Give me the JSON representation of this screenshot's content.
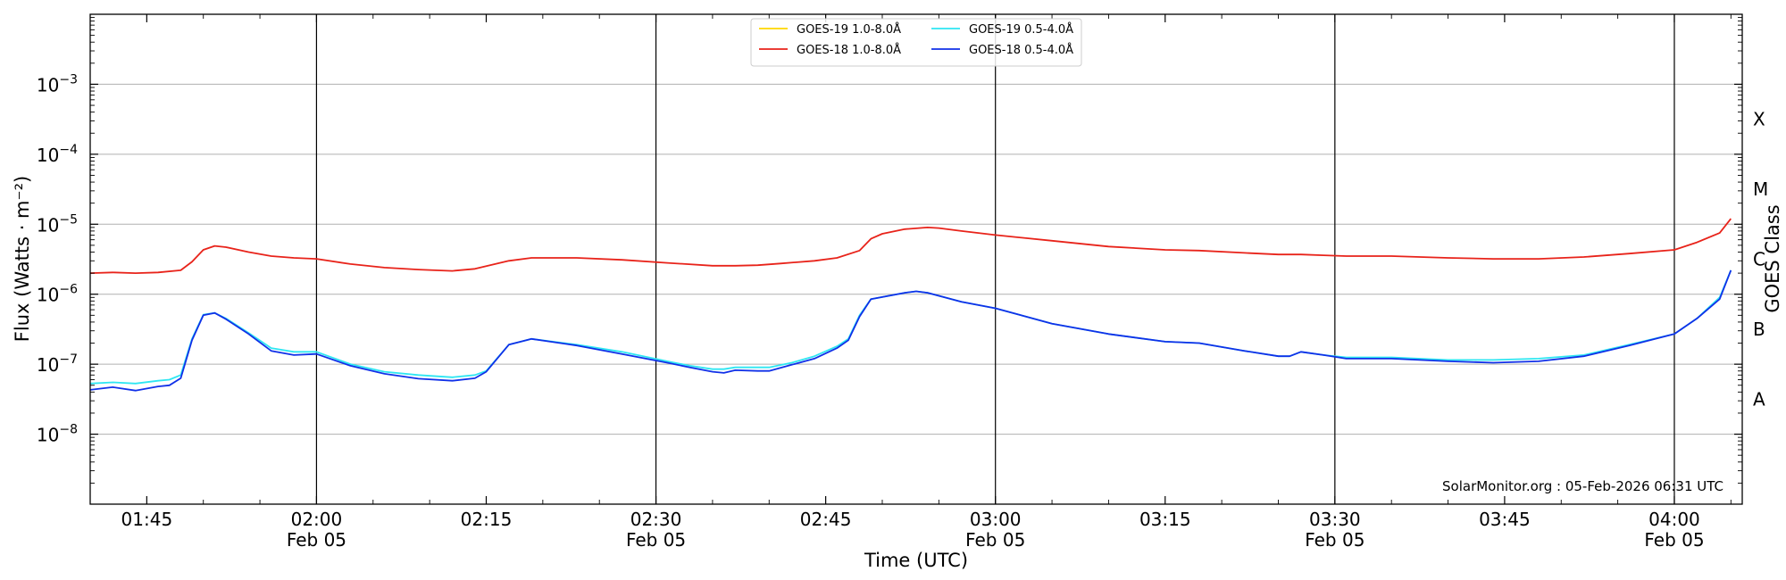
{
  "chart_data": {
    "type": "line",
    "xlabel": "Time (UTC)",
    "ylabel": "Flux (Watts · m⁻²)",
    "right_label": "GOES Class",
    "yscale": "log",
    "ylim": [
      1e-09,
      0.01
    ],
    "xlim": [
      "01:40",
      "04:06"
    ],
    "x_ticks": [
      {
        "t": "01:45",
        "label": "01:45",
        "sub": ""
      },
      {
        "t": "02:00",
        "label": "02:00",
        "sub": "Feb 05"
      },
      {
        "t": "02:15",
        "label": "02:15",
        "sub": ""
      },
      {
        "t": "02:30",
        "label": "02:30",
        "sub": "Feb 05"
      },
      {
        "t": "02:45",
        "label": "02:45",
        "sub": ""
      },
      {
        "t": "03:00",
        "label": "03:00",
        "sub": "Feb 05"
      },
      {
        "t": "03:15",
        "label": "03:15",
        "sub": ""
      },
      {
        "t": "03:30",
        "label": "03:30",
        "sub": "Feb 05"
      },
      {
        "t": "03:45",
        "label": "03:45",
        "sub": ""
      },
      {
        "t": "04:00",
        "label": "04:00",
        "sub": "Feb 05"
      }
    ],
    "vertical_lines": [
      "02:00",
      "02:30",
      "03:00",
      "03:30",
      "04:00"
    ],
    "y_ticks": [
      {
        "v": 1e-08,
        "base": "10",
        "exp": "−8"
      },
      {
        "v": 1e-07,
        "base": "10",
        "exp": "−7"
      },
      {
        "v": 1e-06,
        "base": "10",
        "exp": "−6"
      },
      {
        "v": 1e-05,
        "base": "10",
        "exp": "−5"
      },
      {
        "v": 0.0001,
        "base": "10",
        "exp": "−4"
      },
      {
        "v": 0.001,
        "base": "10",
        "exp": "−3"
      }
    ],
    "goes_classes": [
      {
        "label": "A",
        "v": 3.16e-08
      },
      {
        "label": "B",
        "v": 3.16e-07
      },
      {
        "label": "C",
        "v": 3.16e-06
      },
      {
        "label": "M",
        "v": 3.16e-05
      },
      {
        "label": "X",
        "v": 0.000316
      }
    ],
    "grid": "horizontal",
    "legend_position": "top-center",
    "annotation": "SolarMonitor.org : 05-Feb-2026 06:31 UTC",
    "series": [
      {
        "name": "GOES-19 1.0-8.0Å",
        "color": "#ffd700",
        "x": [],
        "values": []
      },
      {
        "name": "GOES-18 1.0-8.0Å",
        "color": "#e8231a",
        "x": [
          "01:40",
          "01:42",
          "01:44",
          "01:46",
          "01:48",
          "01:49",
          "01:50",
          "01:51",
          "01:52",
          "01:54",
          "01:56",
          "01:58",
          "02:00",
          "02:03",
          "02:06",
          "02:09",
          "02:12",
          "02:14",
          "02:17",
          "02:19",
          "02:23",
          "02:27",
          "02:31",
          "02:35",
          "02:37",
          "02:39",
          "02:41",
          "02:44",
          "02:46",
          "02:48",
          "02:49",
          "02:50",
          "02:52",
          "02:54",
          "02:55",
          "02:57",
          "03:00",
          "03:05",
          "03:10",
          "03:15",
          "03:18",
          "03:22",
          "03:25",
          "03:27",
          "03:29",
          "03:31",
          "03:35",
          "03:40",
          "03:44",
          "03:48",
          "03:52",
          "03:56",
          "04:00",
          "04:02",
          "04:04",
          "04:05"
        ],
        "values": [
          2e-06,
          2.05e-06,
          2e-06,
          2.05e-06,
          2.2e-06,
          2.9e-06,
          4.3e-06,
          4.9e-06,
          4.7e-06,
          4e-06,
          3.5e-06,
          3.3e-06,
          3.2e-06,
          2.7e-06,
          2.4e-06,
          2.25e-06,
          2.15e-06,
          2.3e-06,
          3e-06,
          3.3e-06,
          3.3e-06,
          3.1e-06,
          2.8e-06,
          2.55e-06,
          2.55e-06,
          2.6e-06,
          2.75e-06,
          3e-06,
          3.3e-06,
          4.2e-06,
          6.2e-06,
          7.3e-06,
          8.5e-06,
          9e-06,
          8.8e-06,
          8e-06,
          7e-06,
          5.8e-06,
          4.8e-06,
          4.3e-06,
          4.2e-06,
          3.9e-06,
          3.7e-06,
          3.7e-06,
          3.6e-06,
          3.5e-06,
          3.5e-06,
          3.3e-06,
          3.2e-06,
          3.2e-06,
          3.4e-06,
          3.8e-06,
          4.3e-06,
          5.5e-06,
          7.5e-06,
          1.2e-05
        ]
      },
      {
        "name": "GOES-19 0.5-4.0Å",
        "color": "#2ee6f2",
        "x": [
          "01:40",
          "01:42",
          "01:44",
          "01:46",
          "01:47",
          "01:48",
          "01:49",
          "01:50",
          "01:51",
          "01:52",
          "01:54",
          "01:56",
          "01:58",
          "02:00",
          "02:03",
          "02:06",
          "02:09",
          "02:12",
          "02:14",
          "02:15",
          "02:17",
          "02:19",
          "02:23",
          "02:27",
          "02:31",
          "02:33",
          "02:35",
          "02:36",
          "02:37",
          "02:39",
          "02:40",
          "02:42",
          "02:44",
          "02:46",
          "02:47",
          "02:48",
          "02:49",
          "02:52",
          "02:53",
          "02:54",
          "02:57",
          "03:00",
          "03:05",
          "03:10",
          "03:15",
          "03:18",
          "03:22",
          "03:25",
          "03:26",
          "03:27",
          "03:29",
          "03:31",
          "03:35",
          "03:40",
          "03:44",
          "03:48",
          "03:52",
          "03:56",
          "04:00",
          "04:02",
          "04:04",
          "04:05"
        ],
        "values": [
          5.3e-08,
          5.5e-08,
          5.3e-08,
          5.8e-08,
          6e-08,
          7e-08,
          2.3e-07,
          5.1e-07,
          5.4e-07,
          4.5e-07,
          2.8e-07,
          1.7e-07,
          1.5e-07,
          1.5e-07,
          1e-07,
          7.8e-08,
          7e-08,
          6.5e-08,
          7e-08,
          8e-08,
          1.9e-07,
          2.3e-07,
          1.9e-07,
          1.5e-07,
          1.1e-07,
          9.5e-08,
          8.5e-08,
          8.5e-08,
          9e-08,
          9e-08,
          9e-08,
          1.05e-07,
          1.3e-07,
          1.8e-07,
          2.3e-07,
          5e-07,
          8.5e-07,
          1.05e-06,
          1.1e-06,
          1.05e-06,
          7.8e-07,
          6.3e-07,
          3.8e-07,
          2.7e-07,
          2.1e-07,
          2e-07,
          1.55e-07,
          1.3e-07,
          1.3e-07,
          1.5e-07,
          1.35e-07,
          1.25e-07,
          1.25e-07,
          1.15e-07,
          1.15e-07,
          1.2e-07,
          1.35e-07,
          1.9e-07,
          2.7e-07,
          4.5e-07,
          9e-07,
          2.2e-06
        ]
      },
      {
        "name": "GOES-18 0.5-4.0Å",
        "color": "#1030e8",
        "x": [
          "01:40",
          "01:42",
          "01:44",
          "01:46",
          "01:47",
          "01:48",
          "01:49",
          "01:50",
          "01:51",
          "01:52",
          "01:54",
          "01:56",
          "01:58",
          "02:00",
          "02:03",
          "02:06",
          "02:09",
          "02:12",
          "02:14",
          "02:15",
          "02:17",
          "02:19",
          "02:23",
          "02:27",
          "02:31",
          "02:33",
          "02:35",
          "02:36",
          "02:37",
          "02:39",
          "02:40",
          "02:42",
          "02:44",
          "02:46",
          "02:47",
          "02:48",
          "02:49",
          "02:52",
          "02:53",
          "02:54",
          "02:57",
          "03:00",
          "03:05",
          "03:10",
          "03:15",
          "03:18",
          "03:22",
          "03:25",
          "03:26",
          "03:27",
          "03:29",
          "03:31",
          "03:35",
          "03:40",
          "03:44",
          "03:48",
          "03:52",
          "03:56",
          "04:00",
          "04:02",
          "04:04",
          "04:05"
        ],
        "values": [
          4.3e-08,
          4.7e-08,
          4.2e-08,
          4.8e-08,
          5e-08,
          6.3e-08,
          2.2e-07,
          5e-07,
          5.4e-07,
          4.4e-07,
          2.7e-07,
          1.55e-07,
          1.35e-07,
          1.4e-07,
          9.5e-08,
          7.3e-08,
          6.2e-08,
          5.8e-08,
          6.3e-08,
          7.8e-08,
          1.9e-07,
          2.3e-07,
          1.85e-07,
          1.4e-07,
          1.05e-07,
          9e-08,
          7.8e-08,
          7.5e-08,
          8.2e-08,
          8e-08,
          8e-08,
          9.8e-08,
          1.2e-07,
          1.7e-07,
          2.2e-07,
          4.8e-07,
          8.5e-07,
          1.05e-06,
          1.1e-06,
          1.05e-06,
          7.8e-07,
          6.3e-07,
          3.8e-07,
          2.7e-07,
          2.1e-07,
          2e-07,
          1.55e-07,
          1.3e-07,
          1.3e-07,
          1.5e-07,
          1.35e-07,
          1.2e-07,
          1.2e-07,
          1.1e-07,
          1.05e-07,
          1.1e-07,
          1.3e-07,
          1.85e-07,
          2.7e-07,
          4.5e-07,
          8.5e-07,
          2.2e-06
        ]
      }
    ]
  }
}
